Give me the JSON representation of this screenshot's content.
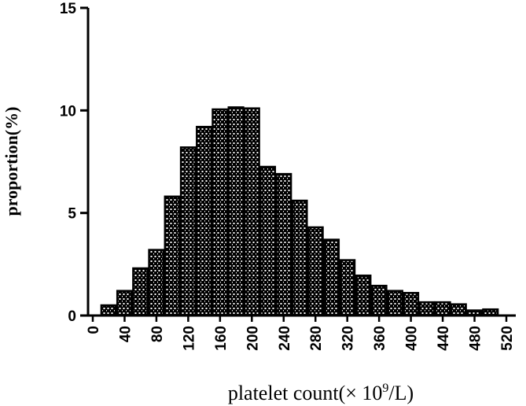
{
  "chart_data": {
    "type": "bar",
    "title": "",
    "xlabel": "platelet count(× 10",
    "xlabel_superscript": "9",
    "xlabel_suffix": "/L)",
    "ylabel": "proportion(%)",
    "ylim": [
      0,
      15
    ],
    "yticks": [
      0,
      5,
      10,
      15
    ],
    "xlim": [
      0,
      520
    ],
    "xticks": [
      0,
      40,
      80,
      120,
      160,
      200,
      240,
      280,
      320,
      360,
      400,
      440,
      480,
      520
    ],
    "bin_width": 20,
    "x": [
      20,
      40,
      60,
      80,
      100,
      120,
      140,
      160,
      180,
      200,
      220,
      240,
      260,
      280,
      300,
      320,
      340,
      360,
      380,
      400,
      420,
      440,
      460,
      480,
      500
    ],
    "values": [
      0.5,
      1.2,
      2.3,
      3.2,
      5.8,
      8.2,
      9.2,
      10.05,
      10.15,
      10.1,
      7.25,
      6.9,
      5.6,
      4.3,
      3.7,
      2.7,
      1.95,
      1.45,
      1.2,
      1.1,
      0.65,
      0.65,
      0.55,
      0.25,
      0.3
    ],
    "bar_fill": "#000000",
    "bar_pattern_color": "#ffffff",
    "axis_color": "#000000",
    "grid": false,
    "legend": "none"
  }
}
